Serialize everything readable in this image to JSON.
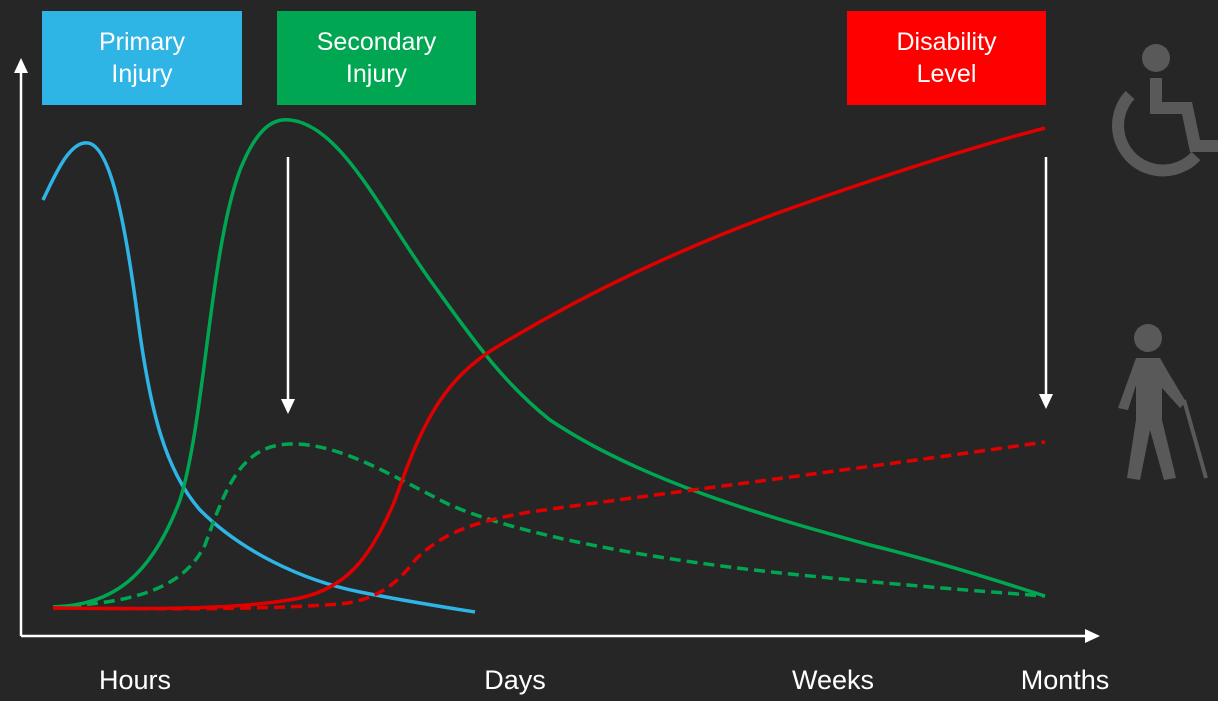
{
  "labels": {
    "primary": {
      "line1": "Primary",
      "line2": "Injury"
    },
    "secondary": {
      "line1": "Secondary",
      "line2": "Injury"
    },
    "disability": {
      "line1": "Disability",
      "line2": "Level"
    }
  },
  "x_axis": {
    "ticks": [
      "Hours",
      "Days",
      "Weeks",
      "Months"
    ]
  },
  "icons": {
    "top_right": "wheelchair-icon",
    "bottom_right": "walking-cane-person-icon"
  },
  "colors": {
    "background": "#262626",
    "primary": "#2fb4e6",
    "secondary": "#00a651",
    "disability": "#e00000",
    "axis": "#ffffff",
    "icon": "#595959"
  },
  "legend": [
    {
      "series": "primary",
      "style": "solid"
    },
    {
      "series": "secondary",
      "style": "solid and dashed"
    },
    {
      "series": "disability",
      "style": "solid and dashed"
    }
  ]
}
